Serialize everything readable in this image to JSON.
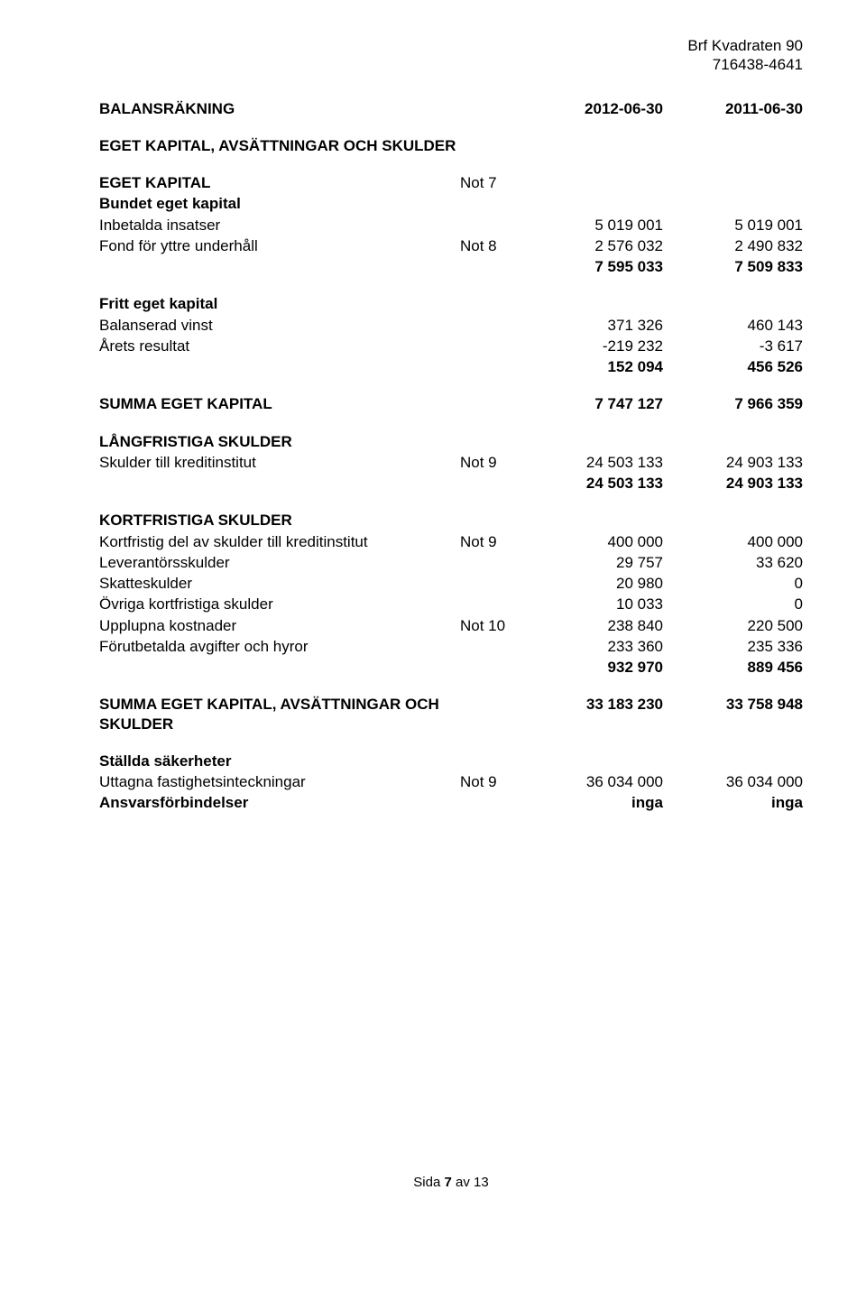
{
  "header": {
    "org_name": "Brf Kvadraten 90",
    "org_number": "716438-4641"
  },
  "title_row": {
    "title": "BALANSRÄKNING",
    "date1": "2012-06-30",
    "date2": "2011-06-30"
  },
  "section1_header": "EGET KAPITAL, AVSÄTTNINGAR OCH SKULDER",
  "eget_kapital": {
    "header": "EGET KAPITAL",
    "note": "Not 7",
    "sub1": "Bundet eget kapital",
    "rows": [
      {
        "label": "Inbetalda insatser",
        "note": "",
        "v1": "5 019 001",
        "v2": "5 019 001"
      },
      {
        "label": "Fond för yttre underhåll",
        "note": "Not 8",
        "v1": "2 576 032",
        "v2": "2 490 832"
      }
    ],
    "subtotal1": {
      "v1": "7 595 033",
      "v2": "7 509 833"
    },
    "sub2": "Fritt eget kapital",
    "rows2": [
      {
        "label": "Balanserad vinst",
        "v1": "371 326",
        "v2": "460 143"
      },
      {
        "label": "Årets resultat",
        "v1": "-219 232",
        "v2": "-3 617"
      }
    ],
    "subtotal2": {
      "v1": "152 094",
      "v2": "456 526"
    },
    "sum": {
      "label": "SUMMA EGET KAPITAL",
      "v1": "7 747 127",
      "v2": "7 966 359"
    }
  },
  "langfristiga": {
    "header": "LÅNGFRISTIGA SKULDER",
    "rows": [
      {
        "label": "Skulder till kreditinstitut",
        "note": "Not 9",
        "v1": "24 503 133",
        "v2": "24 903 133"
      }
    ],
    "subtotal": {
      "v1": "24 503 133",
      "v2": "24 903 133"
    }
  },
  "kortfristiga": {
    "header": "KORTFRISTIGA SKULDER",
    "rows": [
      {
        "label": "Kortfristig del av skulder till kreditinstitut",
        "note": "Not 9",
        "v1": "400 000",
        "v2": "400 000"
      },
      {
        "label": "Leverantörsskulder",
        "note": "",
        "v1": "29 757",
        "v2": "33 620"
      },
      {
        "label": "Skatteskulder",
        "note": "",
        "v1": "20 980",
        "v2": "0"
      },
      {
        "label": "Övriga kortfristiga skulder",
        "note": "",
        "v1": "10 033",
        "v2": "0"
      },
      {
        "label": "Upplupna kostnader",
        "note": "Not 10",
        "v1": "238 840",
        "v2": "220 500"
      },
      {
        "label": "Förutbetalda avgifter och hyror",
        "note": "",
        "v1": "233 360",
        "v2": "235 336"
      }
    ],
    "subtotal": {
      "v1": "932 970",
      "v2": "889 456"
    }
  },
  "grand_total": {
    "label": "SUMMA EGET KAPITAL, AVSÄTTNINGAR OCH SKULDER",
    "v1": "33 183 230",
    "v2": "33 758 948"
  },
  "stallda": {
    "header": "Ställda säkerheter",
    "rows": [
      {
        "label": "Uttagna fastighetsinteckningar",
        "note": "Not 9",
        "v1": "36 034 000",
        "v2": "36 034 000"
      }
    ],
    "ansvars": {
      "label": "Ansvarsförbindelser",
      "v1": "inga",
      "v2": "inga"
    }
  },
  "footer": {
    "page_prefix": "Sida ",
    "page_current": "7",
    "page_sep": " av ",
    "page_total": "13"
  }
}
